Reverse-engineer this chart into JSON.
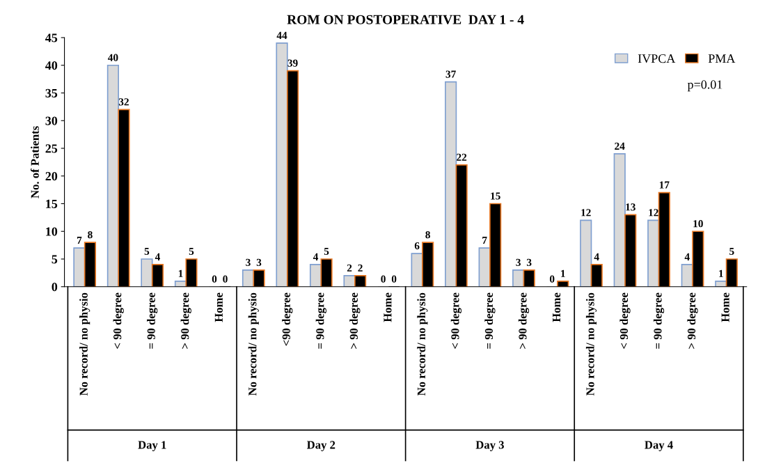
{
  "chart_data": {
    "type": "bar",
    "title": "ROM ON POSTOPERATIVE  DAY 1 - 4",
    "ylabel": "No. of Patients",
    "categories": [
      "No record/ no physio",
      "< 90 degree",
      "= 90 degree",
      "> 90 degree",
      "Home",
      "No record/ no physio",
      "<90 degree",
      "= 90 degree",
      "> 90 degree",
      "Home",
      "No record/ no physio",
      "< 90 degree",
      "= 90 degree",
      "> 90 degree",
      "Home",
      "No record/ no physio",
      "< 90 degree",
      "= 90 degree",
      "> 90 degree",
      "Home"
    ],
    "series": [
      {
        "name": "IVPCA",
        "color": "#d9d9d9",
        "values": [
          7,
          40,
          5,
          1,
          0,
          3,
          44,
          4,
          2,
          0,
          6,
          37,
          7,
          3,
          0,
          12,
          24,
          12,
          4,
          1
        ]
      },
      {
        "name": "PMA",
        "color": "#000000",
        "values": [
          8,
          32,
          4,
          5,
          0,
          3,
          39,
          5,
          2,
          0,
          8,
          22,
          15,
          3,
          1,
          4,
          13,
          17,
          10,
          5
        ]
      }
    ],
    "ylim": [
      0,
      45
    ],
    "yticks": [
      0,
      5,
      10,
      15,
      20,
      25,
      30,
      35,
      40,
      45
    ],
    "annotations": [
      "Day 1",
      "Day 2",
      "Day 3",
      "Day 4",
      "p=0.01"
    ],
    "data_labels": true,
    "legend": "top right",
    "grid": false
  }
}
